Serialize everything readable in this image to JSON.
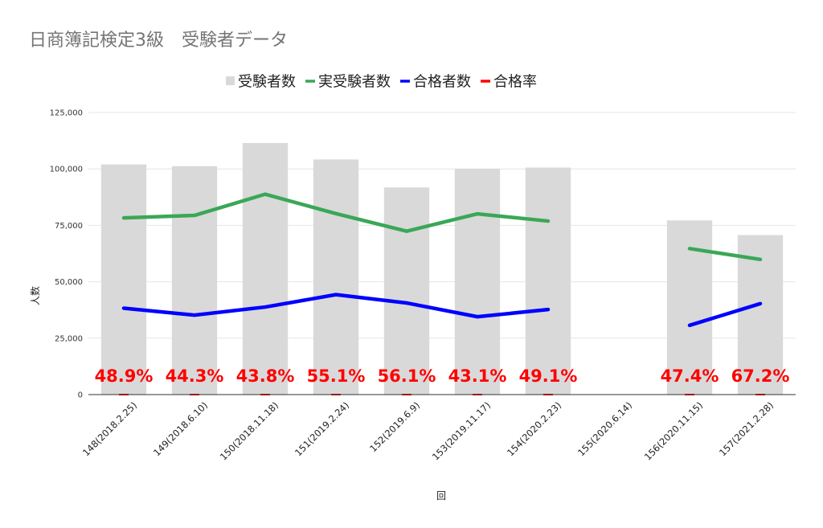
{
  "chart_data": {
    "type": "bar",
    "title": "日商簿記検定3級　受験者データ",
    "xlabel": "回",
    "ylabel": "人数",
    "ylim": [
      0,
      125000
    ],
    "yticks": [
      0,
      25000,
      50000,
      75000,
      100000,
      125000
    ],
    "ytick_labels": [
      "0",
      "25,000",
      "50,000",
      "75,000",
      "100,000",
      "125,000"
    ],
    "grid": true,
    "legend_position": "top",
    "categories": [
      "148(2018.2.25)",
      "149(2018.6.10)",
      "150(2018.11.18)",
      "151(2019.2.24)",
      "152(2019.6.9)",
      "153(2019.11.17)",
      "154(2020.2.23)",
      "155(2020.6.14)",
      "156(2020.11.15)",
      "157(2021.2.28)"
    ],
    "series": [
      {
        "name": "受験者数",
        "type": "bar",
        "color": "#d9d9d9",
        "values": [
          102000,
          101200,
          111500,
          104200,
          91800,
          100100,
          100600,
          null,
          77200,
          70700
        ]
      },
      {
        "name": "実受験者数",
        "type": "line",
        "color": "#3aa757",
        "values": [
          78300,
          79400,
          88800,
          80200,
          72400,
          80100,
          76900,
          null,
          64700,
          59900
        ]
      },
      {
        "name": "合格者数",
        "type": "line",
        "color": "#0000ff",
        "values": [
          38300,
          35200,
          38800,
          44300,
          40600,
          34500,
          37700,
          null,
          30700,
          40300
        ]
      },
      {
        "name": "合格率",
        "type": "line",
        "color": "#ff0000",
        "values": [
          48.9,
          44.3,
          43.8,
          55.1,
          56.1,
          43.1,
          49.1,
          null,
          47.4,
          67.2
        ]
      }
    ],
    "data_labels": [
      "48.9%",
      "44.3%",
      "43.8%",
      "55.1%",
      "56.1%",
      "43.1%",
      "49.1%",
      "",
      "47.4%",
      "67.2%"
    ]
  }
}
